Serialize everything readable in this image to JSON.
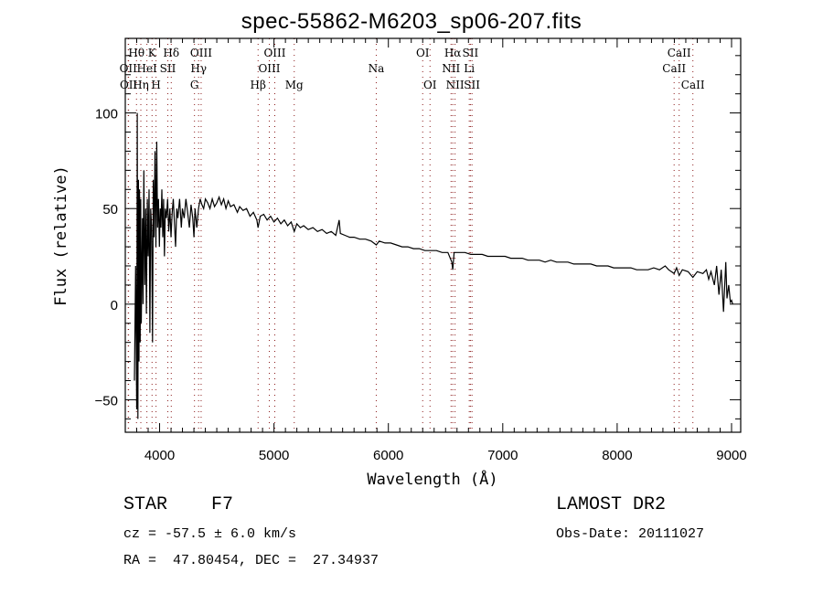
{
  "chart_data": {
    "type": "line",
    "title": "spec-55862-M6203_sp06-207.fits",
    "xlabel": "Wavelength (Å)",
    "ylabel": "Flux (relative)",
    "xlim": [
      3700,
      9080
    ],
    "ylim": [
      -67,
      139
    ],
    "x_ticks": [
      4000,
      5000,
      6000,
      7000,
      8000,
      9000
    ],
    "y_ticks": [
      -50,
      0,
      50,
      100
    ],
    "grid": false,
    "line_color": "#000000",
    "marker_color": "#8b1a1a",
    "lines": [
      {
        "label": "Hθ",
        "wl": 3798,
        "row": 1
      },
      {
        "label": "K",
        "wl": 3934,
        "row": 1
      },
      {
        "label": "Hδ",
        "wl": 4102,
        "row": 1
      },
      {
        "label": "OIII",
        "wl": 4363,
        "row": 1
      },
      {
        "label": "OIII",
        "wl": 5007,
        "row": 1
      },
      {
        "label": "OI",
        "wl": 6300,
        "row": 1
      },
      {
        "label": "Hα",
        "wl": 6563,
        "row": 1
      },
      {
        "label": "SII",
        "wl": 6717,
        "row": 1
      },
      {
        "label": "CaII",
        "wl": 8542,
        "row": 1
      },
      {
        "label": "OII",
        "wl": 3726,
        "row": 2
      },
      {
        "label": "HeI",
        "wl": 3889,
        "row": 2
      },
      {
        "label": "SII",
        "wl": 4072,
        "row": 2
      },
      {
        "label": "Hγ",
        "wl": 4341,
        "row": 2
      },
      {
        "label": "OIII",
        "wl": 4959,
        "row": 2
      },
      {
        "label": "Na",
        "wl": 5894,
        "row": 2
      },
      {
        "label": "NII",
        "wl": 6548,
        "row": 2
      },
      {
        "label": "Li",
        "wl": 6707,
        "row": 2
      },
      {
        "label": "CaII",
        "wl": 8498,
        "row": 2
      },
      {
        "label": "OII",
        "wl": 3729,
        "row": 3
      },
      {
        "label": "Hη",
        "wl": 3836,
        "row": 3
      },
      {
        "label": "H",
        "wl": 3969,
        "row": 3
      },
      {
        "label": "G",
        "wl": 4305,
        "row": 3
      },
      {
        "label": "Hβ",
        "wl": 4861,
        "row": 3
      },
      {
        "label": "Mg",
        "wl": 5177,
        "row": 3
      },
      {
        "label": "OI",
        "wl": 6364,
        "row": 3
      },
      {
        "label": "NII",
        "wl": 6583,
        "row": 3
      },
      {
        "label": "SII",
        "wl": 6731,
        "row": 3
      },
      {
        "label": "CaII",
        "wl": 8662,
        "row": 3
      }
    ],
    "series": [
      {
        "name": "flux",
        "points": [
          [
            3780,
            -40
          ],
          [
            3790,
            20
          ],
          [
            3800,
            -55
          ],
          [
            3805,
            100
          ],
          [
            3810,
            -60
          ],
          [
            3815,
            65
          ],
          [
            3820,
            -30
          ],
          [
            3825,
            60
          ],
          [
            3830,
            -20
          ],
          [
            3835,
            55
          ],
          [
            3840,
            -10
          ],
          [
            3850,
            45
          ],
          [
            3855,
            0
          ],
          [
            3862,
            70
          ],
          [
            3870,
            10
          ],
          [
            3878,
            50
          ],
          [
            3885,
            -5
          ],
          [
            3893,
            55
          ],
          [
            3900,
            25
          ],
          [
            3908,
            60
          ],
          [
            3915,
            -15
          ],
          [
            3922,
            50
          ],
          [
            3930,
            40
          ],
          [
            3938,
            -20
          ],
          [
            3945,
            65
          ],
          [
            3952,
            35
          ],
          [
            3960,
            80
          ],
          [
            3968,
            30
          ],
          [
            3975,
            85
          ],
          [
            3982,
            40
          ],
          [
            3990,
            55
          ],
          [
            3998,
            30
          ],
          [
            4005,
            50
          ],
          [
            4012,
            40
          ],
          [
            4020,
            60
          ],
          [
            4028,
            35
          ],
          [
            4035,
            55
          ],
          [
            4042,
            25
          ],
          [
            4050,
            50
          ],
          [
            4060,
            45
          ],
          [
            4070,
            55
          ],
          [
            4080,
            38
          ],
          [
            4090,
            50
          ],
          [
            4100,
            35
          ],
          [
            4110,
            48
          ],
          [
            4120,
            55
          ],
          [
            4130,
            42
          ],
          [
            4140,
            30
          ],
          [
            4150,
            50
          ],
          [
            4160,
            45
          ],
          [
            4175,
            55
          ],
          [
            4190,
            40
          ],
          [
            4200,
            50
          ],
          [
            4215,
            45
          ],
          [
            4230,
            55
          ],
          [
            4245,
            48
          ],
          [
            4260,
            40
          ],
          [
            4275,
            52
          ],
          [
            4290,
            45
          ],
          [
            4300,
            35
          ],
          [
            4310,
            50
          ],
          [
            4325,
            40
          ],
          [
            4340,
            50
          ],
          [
            4355,
            55
          ],
          [
            4370,
            52
          ],
          [
            4385,
            50
          ],
          [
            4400,
            55
          ],
          [
            4420,
            53
          ],
          [
            4440,
            50
          ],
          [
            4460,
            55
          ],
          [
            4480,
            51
          ],
          [
            4500,
            53
          ],
          [
            4520,
            56
          ],
          [
            4540,
            52
          ],
          [
            4560,
            55
          ],
          [
            4580,
            50
          ],
          [
            4600,
            54
          ],
          [
            4620,
            51
          ],
          [
            4650,
            52
          ],
          [
            4680,
            48
          ],
          [
            4700,
            51
          ],
          [
            4730,
            49
          ],
          [
            4760,
            50
          ],
          [
            4790,
            46
          ],
          [
            4820,
            48
          ],
          [
            4850,
            44
          ],
          [
            4861,
            40
          ],
          [
            4880,
            46
          ],
          [
            4910,
            47
          ],
          [
            4940,
            44
          ],
          [
            4970,
            46
          ],
          [
            5000,
            43
          ],
          [
            5030,
            45
          ],
          [
            5060,
            42
          ],
          [
            5090,
            44
          ],
          [
            5120,
            41
          ],
          [
            5150,
            43
          ],
          [
            5177,
            38
          ],
          [
            5200,
            42
          ],
          [
            5230,
            40
          ],
          [
            5260,
            41
          ],
          [
            5300,
            39
          ],
          [
            5340,
            40
          ],
          [
            5380,
            38
          ],
          [
            5420,
            39
          ],
          [
            5460,
            37
          ],
          [
            5500,
            38
          ],
          [
            5540,
            36
          ],
          [
            5570,
            44
          ],
          [
            5580,
            37
          ],
          [
            5620,
            36
          ],
          [
            5660,
            35
          ],
          [
            5700,
            35
          ],
          [
            5750,
            34
          ],
          [
            5800,
            34
          ],
          [
            5850,
            33
          ],
          [
            5894,
            31
          ],
          [
            5920,
            33
          ],
          [
            5970,
            32
          ],
          [
            6020,
            32
          ],
          [
            6070,
            31
          ],
          [
            6120,
            30
          ],
          [
            6170,
            30
          ],
          [
            6220,
            29
          ],
          [
            6270,
            29
          ],
          [
            6320,
            28
          ],
          [
            6370,
            28
          ],
          [
            6420,
            28
          ],
          [
            6470,
            27
          ],
          [
            6520,
            27
          ],
          [
            6555,
            22
          ],
          [
            6563,
            18
          ],
          [
            6575,
            27
          ],
          [
            6620,
            27
          ],
          [
            6670,
            27
          ],
          [
            6720,
            26
          ],
          [
            6770,
            26
          ],
          [
            6820,
            26
          ],
          [
            6870,
            25
          ],
          [
            6920,
            25
          ],
          [
            6970,
            25
          ],
          [
            7020,
            25
          ],
          [
            7070,
            24
          ],
          [
            7120,
            24
          ],
          [
            7170,
            24
          ],
          [
            7220,
            23
          ],
          [
            7270,
            23
          ],
          [
            7320,
            23
          ],
          [
            7370,
            22
          ],
          [
            7420,
            23
          ],
          [
            7470,
            22
          ],
          [
            7520,
            22
          ],
          [
            7570,
            22
          ],
          [
            7620,
            21
          ],
          [
            7670,
            21
          ],
          [
            7720,
            21
          ],
          [
            7770,
            21
          ],
          [
            7820,
            20
          ],
          [
            7870,
            20
          ],
          [
            7920,
            20
          ],
          [
            7970,
            19
          ],
          [
            8020,
            19
          ],
          [
            8070,
            19
          ],
          [
            8120,
            19
          ],
          [
            8170,
            18
          ],
          [
            8220,
            18
          ],
          [
            8270,
            18
          ],
          [
            8320,
            19
          ],
          [
            8370,
            18
          ],
          [
            8420,
            20
          ],
          [
            8450,
            18
          ],
          [
            8498,
            16
          ],
          [
            8520,
            19
          ],
          [
            8542,
            15
          ],
          [
            8570,
            18
          ],
          [
            8620,
            17
          ],
          [
            8662,
            14
          ],
          [
            8700,
            17
          ],
          [
            8750,
            16
          ],
          [
            8780,
            18
          ],
          [
            8800,
            13
          ],
          [
            8820,
            17
          ],
          [
            8850,
            10
          ],
          [
            8870,
            20
          ],
          [
            8890,
            5
          ],
          [
            8910,
            18
          ],
          [
            8930,
            -4
          ],
          [
            8950,
            22
          ],
          [
            8960,
            3
          ],
          [
            8975,
            10
          ],
          [
            8990,
            1
          ],
          [
            9000,
            2
          ],
          [
            9010,
            0
          ]
        ]
      }
    ]
  },
  "info": {
    "object": "STAR    F7",
    "survey": "LAMOST DR2",
    "cz": "cz = -57.5 ± 6.0 km/s",
    "obs_date": "Obs-Date: 20111027",
    "coords": "RA =  47.80454, DEC =  27.34937"
  }
}
